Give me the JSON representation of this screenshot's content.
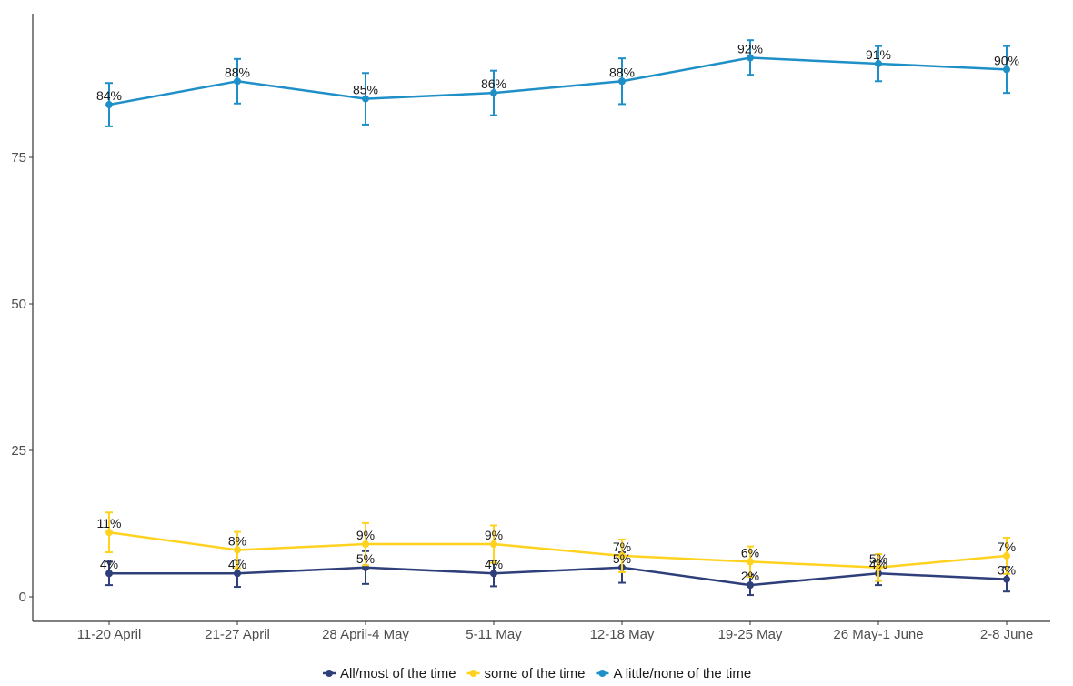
{
  "chart_data": {
    "type": "line",
    "title": "",
    "xlabel": "",
    "ylabel": "",
    "categories": [
      "11-20 April",
      "21-27 April",
      "28 April-4 May",
      "5-11 May",
      "12-18 May",
      "19-25 May",
      "26 May-1 June",
      "2-8 June"
    ],
    "ylim": [
      0,
      100
    ],
    "yticks": [
      0,
      25,
      50,
      75
    ],
    "grid": false,
    "legend_position": "bottom",
    "series": [
      {
        "name": "All/most of the time",
        "color": "#2e3f7a",
        "values": [
          4,
          4,
          5,
          4,
          5,
          2,
          4,
          3
        ],
        "labels": [
          "4%",
          "4%",
          "5%",
          "4%",
          "5%",
          "2%",
          "4%",
          "3%"
        ],
        "error_low": [
          2,
          1.7,
          2.2,
          1.8,
          2.4,
          0.3,
          2,
          0.9
        ],
        "error_high": [
          6,
          6.3,
          7.8,
          6.2,
          7.6,
          3.8,
          6,
          5.1
        ]
      },
      {
        "name": "some of the time",
        "color": "#ffd21f",
        "values": [
          11,
          8,
          9,
          9,
          7,
          6,
          5,
          7
        ],
        "labels": [
          "11%",
          "8%",
          "9%",
          "9%",
          "7%",
          "6%",
          "5%",
          "7%"
        ],
        "error_low": [
          7.6,
          4.9,
          5.4,
          5.8,
          4.2,
          3.4,
          2.7,
          3.9
        ],
        "error_high": [
          14.4,
          11.1,
          12.6,
          12.2,
          9.8,
          8.6,
          7.3,
          10.1
        ]
      },
      {
        "name": "A little/none of the time",
        "color": "#1f8fc8",
        "values": [
          84,
          88,
          85,
          86,
          88,
          92,
          91,
          90
        ],
        "labels": [
          "84%",
          "88%",
          "85%",
          "86%",
          "88%",
          "92%",
          "91%",
          "90%"
        ],
        "error_low": [
          80.3,
          84.2,
          80.6,
          82.2,
          84.1,
          89.1,
          88,
          86
        ],
        "error_high": [
          87.7,
          91.8,
          89.4,
          89.8,
          91.9,
          95,
          94,
          94
        ]
      }
    ]
  }
}
